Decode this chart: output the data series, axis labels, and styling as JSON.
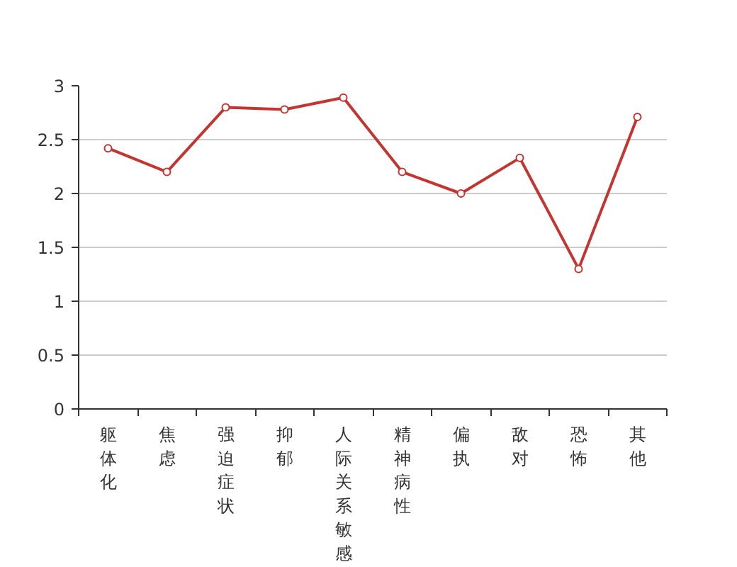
{
  "chart_data": {
    "type": "line",
    "categories": [
      "躯体化",
      "焦虑",
      "强迫症状",
      "抑郁",
      "人际关系敏感",
      "精神病性",
      "偏执",
      "敌对",
      "恐怖",
      "其他"
    ],
    "series": [
      {
        "color": "#c23531",
        "values": [
          2.42,
          2.2,
          2.8,
          2.78,
          2.89,
          2.2,
          2.0,
          2.33,
          1.3,
          2.71
        ]
      }
    ],
    "ylim": [
      0,
      3
    ],
    "yticks": [
      0,
      0.5,
      1,
      1.5,
      2,
      2.5,
      3
    ],
    "grid": "y",
    "marker": "circle",
    "line_style": "solid"
  }
}
